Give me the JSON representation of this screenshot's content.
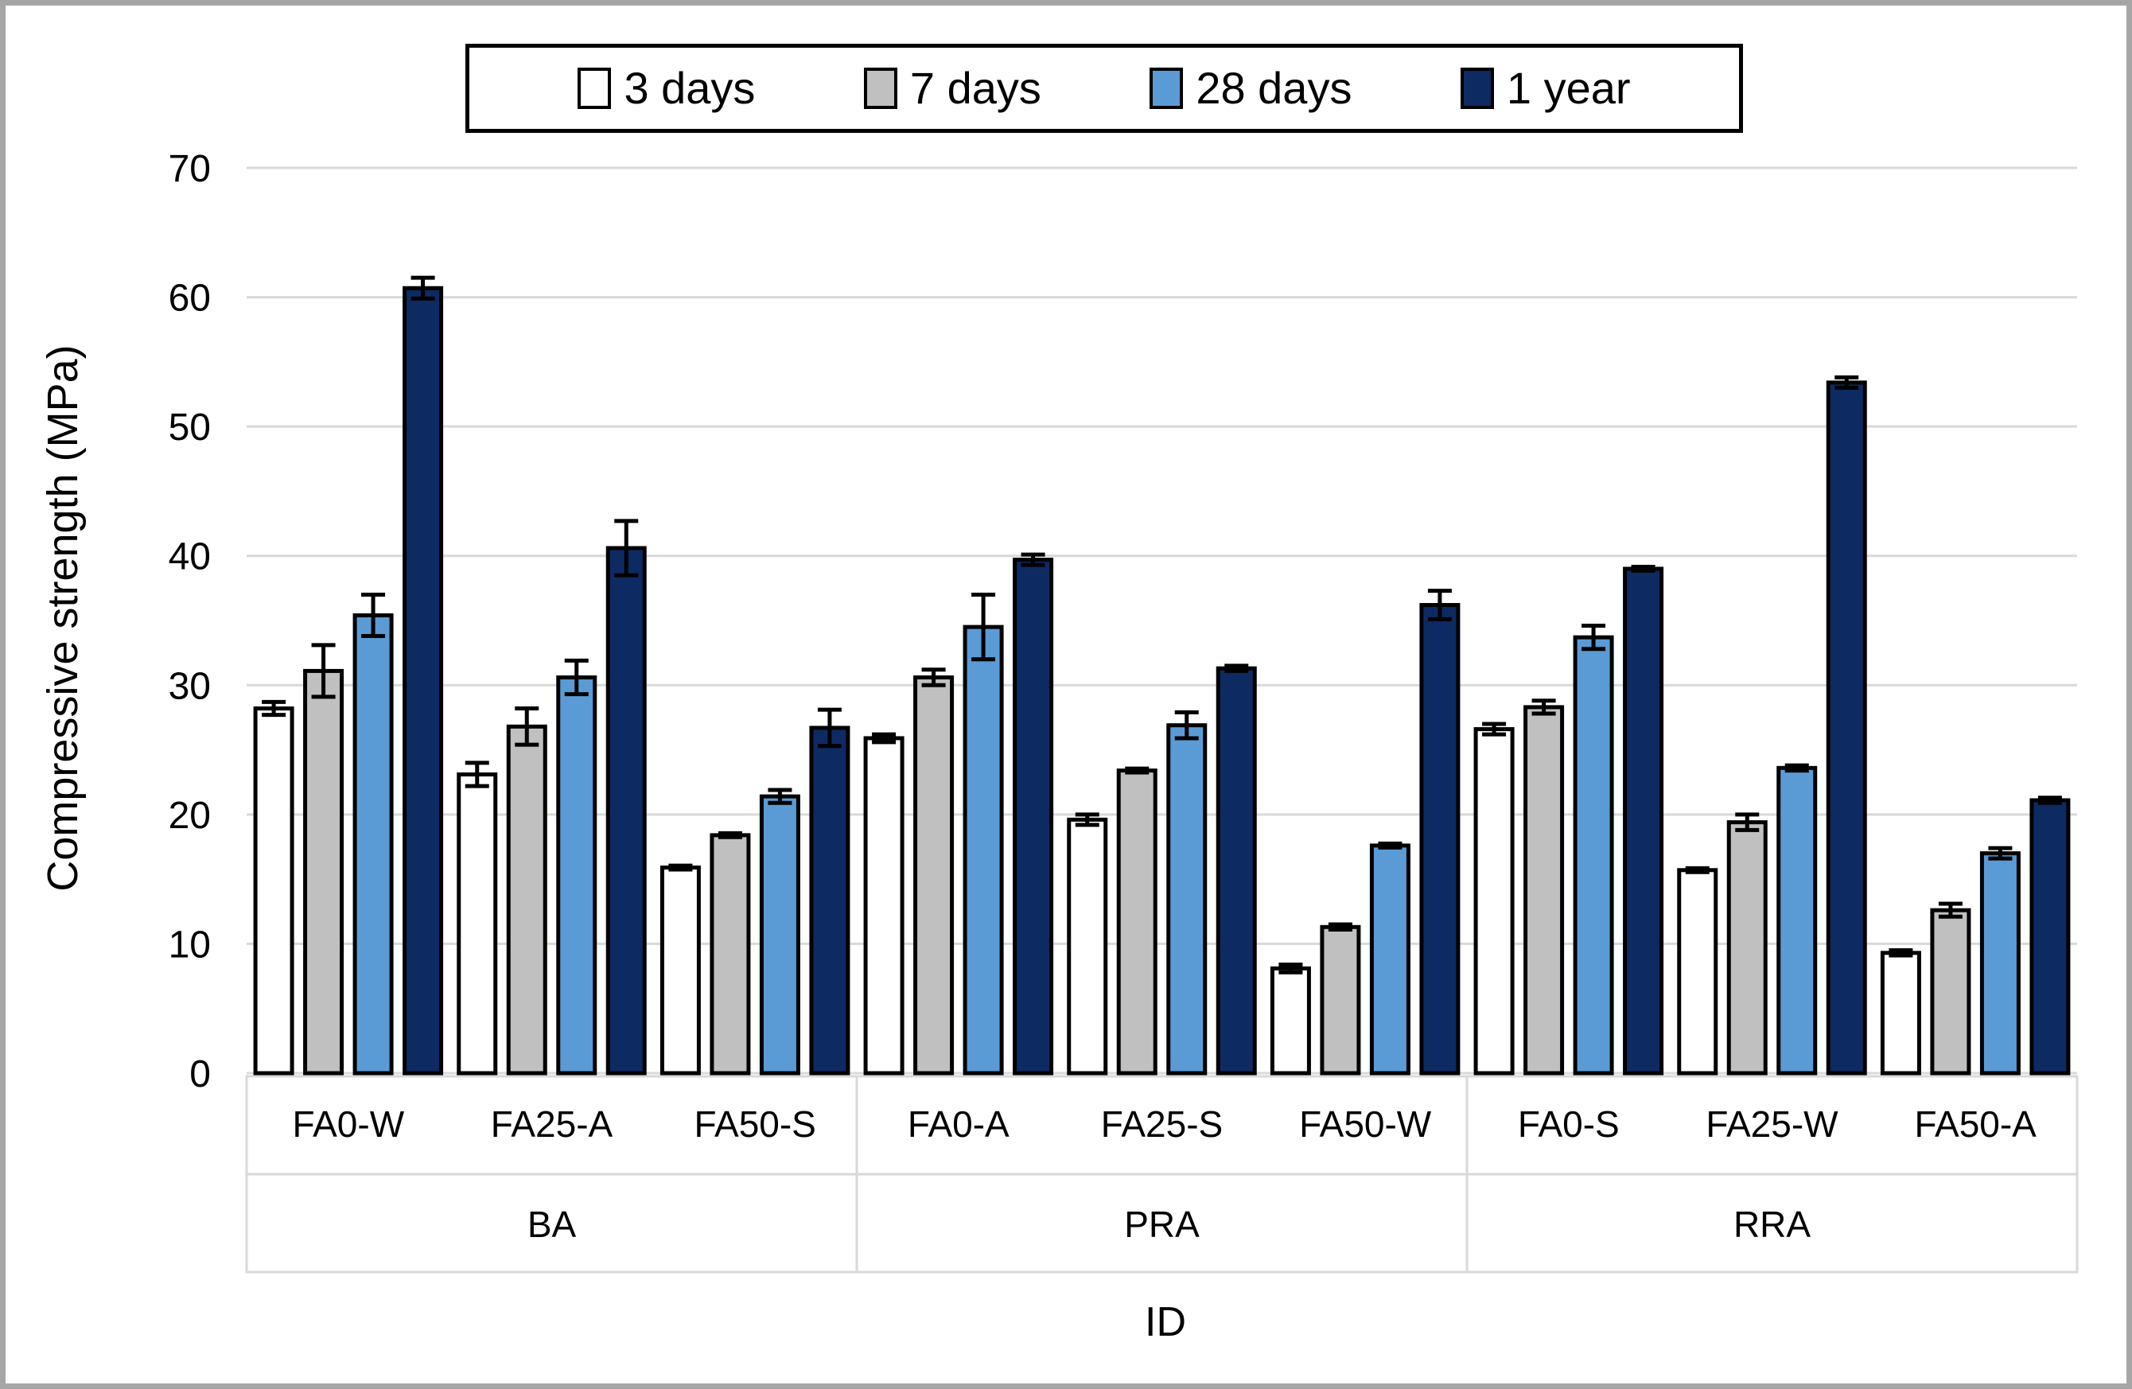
{
  "figure": {
    "frame_color": "#a6a6a6",
    "background": "#ffffff"
  },
  "chart_data": {
    "type": "bar",
    "title": "",
    "ylabel": "Compressive strength (MPa)",
    "xlabel": "ID",
    "ylim": [
      0,
      70
    ],
    "y_ticks": [
      0,
      10,
      20,
      30,
      40,
      50,
      60,
      70
    ],
    "grid": true,
    "gridline_color": "#d9d9d9",
    "axis_box_color": "#d9d9d9",
    "bar_border_color": "#000000",
    "error_bar_color": "#000000",
    "legend_position": "top",
    "categories": [
      "FA0-W",
      "FA25-A",
      "FA50-S",
      "FA0-A",
      "FA25-S",
      "FA50-W",
      "FA0-S",
      "FA25-W",
      "FA50-A"
    ],
    "category_groups": [
      "BA",
      "BA",
      "BA",
      "PRA",
      "PRA",
      "PRA",
      "RRA",
      "RRA",
      "RRA"
    ],
    "group_labels": [
      "BA",
      "PRA",
      "RRA"
    ],
    "series": [
      {
        "name": "3 days",
        "color": "#ffffff",
        "values": [
          28.2,
          23.1,
          15.9,
          25.9,
          19.6,
          8.1,
          26.6,
          15.7,
          9.3
        ],
        "errors": [
          0.5,
          0.9,
          0.15,
          0.3,
          0.4,
          0.3,
          0.4,
          0.15,
          0.2
        ]
      },
      {
        "name": "7 days",
        "color": "#c0c0c0",
        "values": [
          31.1,
          26.8,
          18.4,
          30.6,
          23.4,
          11.3,
          28.3,
          19.4,
          12.6
        ],
        "errors": [
          2.0,
          1.4,
          0.15,
          0.6,
          0.15,
          0.2,
          0.5,
          0.6,
          0.5
        ]
      },
      {
        "name": "28 days",
        "color": "#5b9bd5",
        "values": [
          35.4,
          30.6,
          21.4,
          34.5,
          26.9,
          17.6,
          33.7,
          23.6,
          17.0
        ],
        "errors": [
          1.6,
          1.3,
          0.5,
          2.5,
          1.0,
          0.15,
          0.9,
          0.2,
          0.4
        ]
      },
      {
        "name": "1 year",
        "color": "#0e2a63",
        "values": [
          60.7,
          40.6,
          26.7,
          39.7,
          31.3,
          36.2,
          39.0,
          53.4,
          21.1
        ],
        "errors": [
          0.8,
          2.1,
          1.4,
          0.4,
          0.2,
          1.1,
          0.15,
          0.4,
          0.2
        ]
      }
    ]
  }
}
